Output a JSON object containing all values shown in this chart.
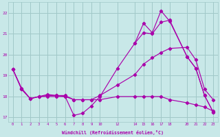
{
  "bg_color": "#c8e8e8",
  "grid_color": "#a0c8c8",
  "line_color": "#aa00aa",
  "xlabel": "Windchill (Refroidissement éolien,°C)",
  "xlabel_color": "#aa00aa",
  "xlim": [
    -0.5,
    23.5
  ],
  "ylim": [
    16.8,
    22.5
  ],
  "yticks": [
    17,
    18,
    19,
    20,
    21,
    22
  ],
  "xticks": [
    0,
    1,
    2,
    3,
    4,
    5,
    6,
    7,
    8,
    9,
    10,
    12,
    14,
    15,
    16,
    17,
    18,
    20,
    21,
    22,
    23
  ],
  "series1_x": [
    0,
    1,
    2,
    3,
    4,
    5,
    6,
    7,
    8,
    9,
    10,
    12,
    14,
    15,
    16,
    17,
    18,
    20,
    21,
    22,
    23
  ],
  "series1_y": [
    19.3,
    18.4,
    17.9,
    18.0,
    18.1,
    18.05,
    18.05,
    17.85,
    17.85,
    17.85,
    18.05,
    18.55,
    19.05,
    19.55,
    19.85,
    20.1,
    20.3,
    20.35,
    19.75,
    18.35,
    17.85
  ],
  "series2_x": [
    0,
    1,
    2,
    3,
    4,
    5,
    6,
    7,
    8,
    9,
    10,
    12,
    14,
    15,
    16,
    17,
    18,
    20,
    21,
    22,
    23
  ],
  "series2_y": [
    19.3,
    18.35,
    17.9,
    18.0,
    18.05,
    18.05,
    18.0,
    17.1,
    17.2,
    17.55,
    18.0,
    19.35,
    20.55,
    21.05,
    21.0,
    21.55,
    21.65,
    19.9,
    19.35,
    18.05,
    17.25
  ],
  "series3_x": [
    0,
    1,
    2,
    3,
    4,
    5,
    6,
    7,
    8,
    9,
    10,
    12,
    14,
    15,
    16,
    17,
    18,
    20,
    21,
    22,
    23
  ],
  "series3_y": [
    19.3,
    18.35,
    17.9,
    18.0,
    18.0,
    18.0,
    18.0,
    17.85,
    17.85,
    17.85,
    17.85,
    18.0,
    18.0,
    18.0,
    18.0,
    18.0,
    17.85,
    17.7,
    17.6,
    17.5,
    17.3
  ],
  "series4_x": [
    14,
    15,
    16,
    17,
    18,
    20,
    21,
    22,
    23
  ],
  "series4_y": [
    20.55,
    21.5,
    21.05,
    22.1,
    21.6,
    19.9,
    19.35,
    18.05,
    17.25
  ]
}
